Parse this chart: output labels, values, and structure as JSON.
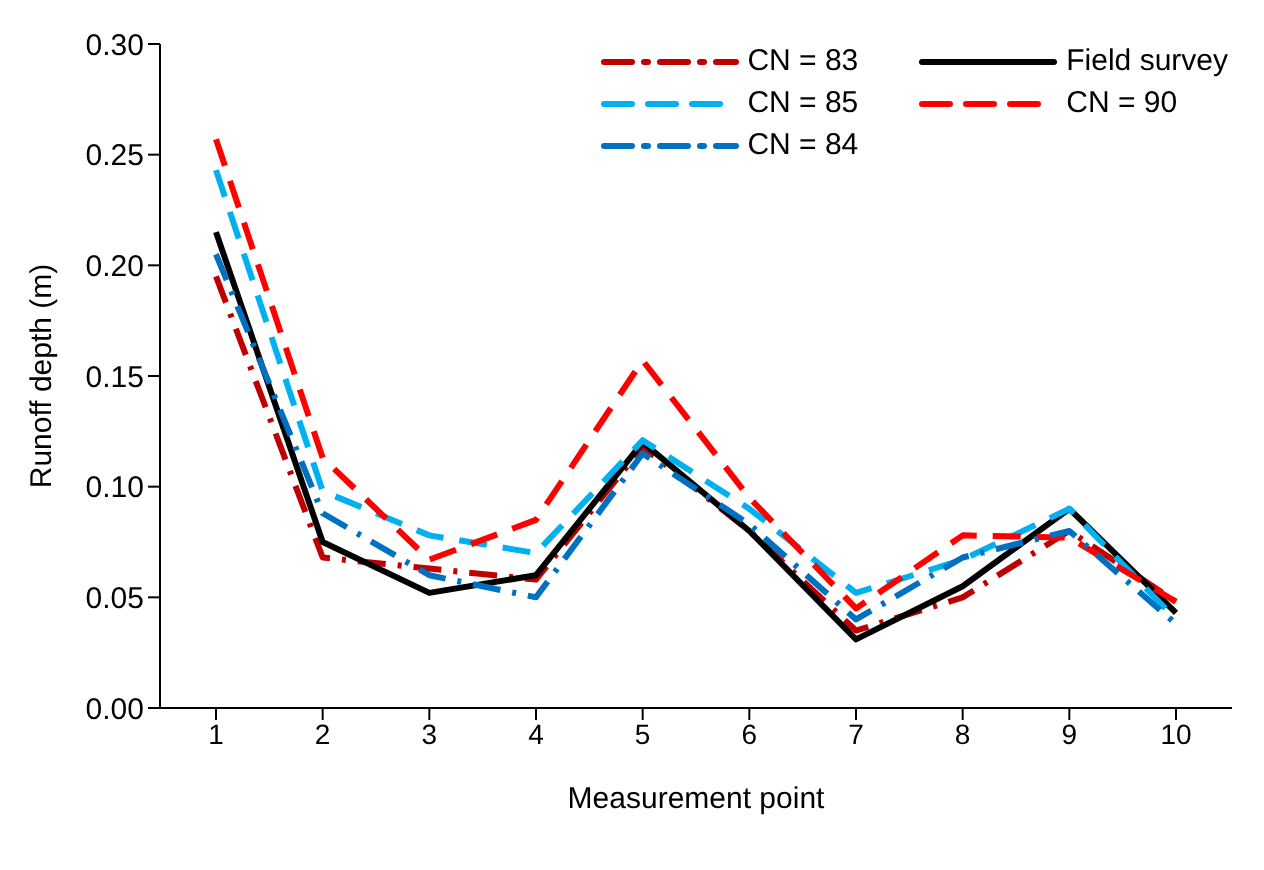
{
  "chart_data": {
    "type": "line",
    "xlabel": "Measurement point",
    "ylabel": "Runoff depth (m)",
    "categories": [
      "1",
      "2",
      "3",
      "4",
      "5",
      "6",
      "7",
      "8",
      "9",
      "10"
    ],
    "ylim": [
      0,
      0.3
    ],
    "yticks": [
      {
        "value": 0,
        "label": "0.00"
      },
      {
        "value": 0.05,
        "label": "0.05"
      },
      {
        "value": 0.1,
        "label": "0.10"
      },
      {
        "value": 0.15,
        "label": "0.15"
      },
      {
        "value": 0.2,
        "label": "0.20"
      },
      {
        "value": 0.25,
        "label": "0.25"
      },
      {
        "value": 0.3,
        "label": "0.30"
      }
    ],
    "grid": false,
    "legend": "top right",
    "marker": "none",
    "series": [
      {
        "name": "CN = 83",
        "color": "#c00000",
        "line_style": "dotted",
        "values": [
          0.195,
          0.068,
          0.063,
          0.058,
          0.118,
          0.08,
          0.035,
          0.05,
          0.08,
          0.048
        ]
      },
      {
        "name": "Field survey",
        "color": "#000000",
        "line_style": "solid",
        "values": [
          0.215,
          0.075,
          0.052,
          0.06,
          0.12,
          0.08,
          0.031,
          0.055,
          0.09,
          0.043
        ]
      },
      {
        "name": "CN = 85",
        "color": "#00b0f0",
        "line_style": "dashed",
        "values": [
          0.243,
          0.098,
          0.078,
          0.07,
          0.121,
          0.09,
          0.052,
          0.067,
          0.09,
          0.04
        ]
      },
      {
        "name": "CN = 90",
        "color": "#ff0000",
        "line_style": "dashed",
        "values": [
          0.257,
          0.113,
          0.067,
          0.085,
          0.157,
          0.095,
          0.045,
          0.078,
          0.077,
          0.048
        ]
      },
      {
        "name": "CN = 84",
        "color": "#0070c0",
        "line_style": "dotted",
        "values": [
          0.205,
          0.088,
          0.06,
          0.05,
          0.115,
          0.083,
          0.04,
          0.068,
          0.08,
          0.038
        ]
      }
    ]
  }
}
